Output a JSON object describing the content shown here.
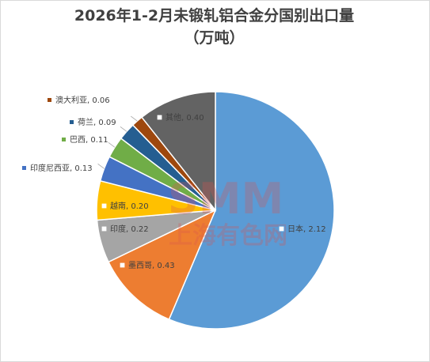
{
  "chart_data": {
    "type": "pie",
    "title": "2026年1-2月未锻轧铝合金分国别出口量",
    "subtitle": "（万吨）",
    "slices": [
      {
        "name": "日本",
        "value": 2.12,
        "label": "日本, 2.12",
        "color": "#5b9bd5"
      },
      {
        "name": "墨西哥",
        "value": 0.43,
        "label": "墨西哥, 0.43",
        "color": "#ed7d31"
      },
      {
        "name": "印度",
        "value": 0.22,
        "label": "印度, 0.22",
        "color": "#a5a5a5"
      },
      {
        "name": "越南",
        "value": 0.2,
        "label": "越南, 0.20",
        "color": "#ffc000"
      },
      {
        "name": "印度尼西亚",
        "value": 0.13,
        "label": "印度尼西亚, 0.13",
        "color": "#4472c4"
      },
      {
        "name": "巴西",
        "value": 0.11,
        "label": "巴西, 0.11",
        "color": "#70ad47"
      },
      {
        "name": "荷兰",
        "value": 0.09,
        "label": "荷兰, 0.09",
        "color": "#255e91"
      },
      {
        "name": "澳大利亚",
        "value": 0.06,
        "label": "澳大利亚, 0.06",
        "color": "#9e480e"
      },
      {
        "name": "其他",
        "value": 0.4,
        "label": "其他, 0.40",
        "color": "#636363"
      }
    ],
    "start_angle_deg": 0,
    "direction": "clockwise"
  },
  "watermark": {
    "letters": "SMM",
    "chinese": "上海有色网",
    "color": "#d9534f"
  }
}
